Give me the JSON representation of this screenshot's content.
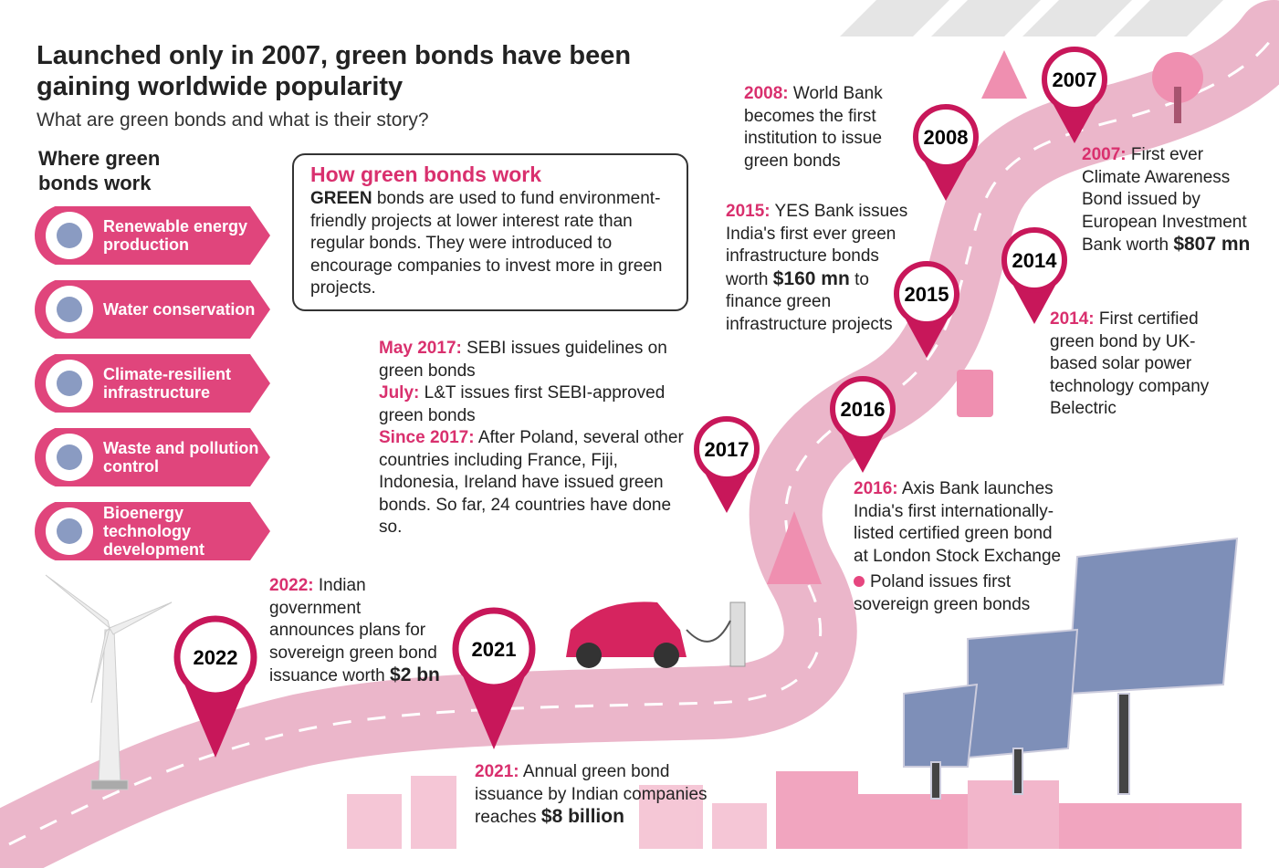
{
  "header": {
    "title": "Launched only in 2007, green bonds have been gaining worldwide popularity",
    "subtitle": "What are green bonds and what is their story?"
  },
  "sectors": {
    "title": "Where green bonds work",
    "items": [
      "Renewable energy production",
      "Water conservation",
      "Climate-resilient infrastructure",
      "Waste and pollution control",
      "Bioenergy technology development"
    ]
  },
  "how_it_works": {
    "title": "How green bonds work",
    "lead": "GREEN",
    "body": "bonds are used to fund environment-friendly projects at lower interest rate than regular bonds. They were introduced to encourage companies to invest more in green projects."
  },
  "pins": [
    "2007",
    "2008",
    "2014",
    "2015",
    "2016",
    "2017",
    "2021",
    "2022"
  ],
  "events": [
    {
      "label": "2008:",
      "text": "World Bank becomes the first institution to issue green bonds"
    },
    {
      "label": "2015:",
      "text": "YES Bank issues India's first ever green infrastructure bonds worth",
      "emphasis": "$160 mn",
      "tail": "to finance green infrastructure projects"
    },
    {
      "label": "2007:",
      "text": "First ever Climate Awareness Bond issued by European Investment Bank worth",
      "emphasis": "$807 mn"
    },
    {
      "label": "2014:",
      "text": "First certified green bond by UK-based solar power technology company Belectric"
    },
    {
      "label": "2016:",
      "text": "Axis Bank launches India's first internationally-listed certified green bond at London Stock Exchange",
      "note": "Poland issues first sovereign green bonds"
    },
    {
      "label": "May 2017:",
      "text": "SEBI issues guidelines on green bonds"
    },
    {
      "label": "July:",
      "text": "L&T issues first SEBI-approved green bonds"
    },
    {
      "label": "Since 2017:",
      "text": "After Poland, several other countries including France, Fiji, Indonesia, Ireland have issued green bonds. So far, 24 countries have done so."
    },
    {
      "label": "2022:",
      "text": "Indian government announces plans for sovereign green bond issuance worth",
      "emphasis": "$2 bn"
    },
    {
      "label": "2021:",
      "text": "Annual green bond issuance by Indian companies reaches",
      "emphasis": "$8 billion"
    }
  ]
}
